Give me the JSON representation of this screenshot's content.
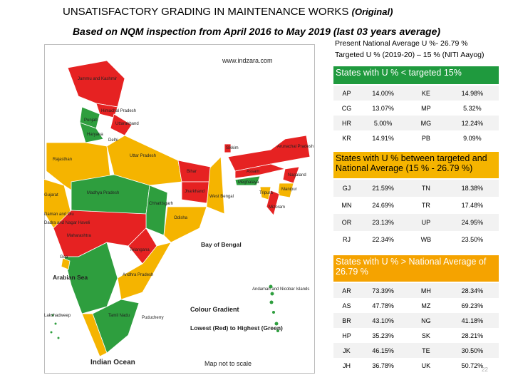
{
  "header": {
    "title": "UNSATISFACTORY GRADING IN MAINTENANCE WORKS",
    "title_note": "(Original)",
    "subtitle": "Based on NQM inspection from April 2016 to May 2019 (last 03 years average)",
    "national_average": "Present National Average U %- 26.79 %",
    "targeted": "Targeted U % (2019-20) – 15 % (NITI Aayog)"
  },
  "map": {
    "website": "www.indzara.com",
    "labels": [
      "Jammu and Kashmir",
      "Himachal Pradesh",
      "Punjab",
      "Uttarakhand",
      "Haryana",
      "Delhi",
      "Rajasthan",
      "Uttar Pradesh",
      "Bihar",
      "Sikkim",
      "Arunachal Pradesh",
      "Assam",
      "Meghalaya",
      "Nagaland",
      "Manipur",
      "Tripura",
      "Mizoram",
      "Gujarat",
      "Madhya Pradesh",
      "Jharkhand",
      "West Bengal",
      "Daman and Diu",
      "Dadra and Nagar Haveli",
      "Chhattisgarh",
      "Odisha",
      "Maharashtra",
      "Telangana",
      "Goa",
      "Andhra Pradesh",
      "Tamil Nadu",
      "Puducherry",
      "Lakshadweep",
      "Andaman and Nicobar Islands",
      "Arabian Sea",
      "Bay of Bengal"
    ],
    "legend_title": "Colour Gradient",
    "legend_text": "Lowest (Red) to Highest (Green)",
    "ocean": "Indian Ocean",
    "scale_note": "Map not to scale"
  },
  "sections": [
    {
      "heading": "States with U % < targeted 15%",
      "rows": [
        [
          "AP",
          "14.00%",
          "KE",
          "14.98%"
        ],
        [
          "CG",
          "13.07%",
          "MP",
          "5.32%"
        ],
        [
          "HR",
          "5.00%",
          "MG",
          "12.24%"
        ],
        [
          "KR",
          "14.91%",
          "PB",
          "9.09%"
        ]
      ]
    },
    {
      "heading": "States with U % between targeted and National Average (15 % - 26.79 %)",
      "rows": [
        [
          "GJ",
          "21.59%",
          "TN",
          "18.38%"
        ],
        [
          "MN",
          "24.69%",
          "TR",
          "17.48%"
        ],
        [
          "OR",
          "23.13%",
          "UP",
          "24.95%"
        ],
        [
          "RJ",
          "22.34%",
          "WB",
          "23.50%"
        ]
      ]
    },
    {
      "heading": "States with U % > National Average of 26.79 %",
      "rows": [
        [
          "AR",
          "73.39%",
          "MH",
          "28.34%"
        ],
        [
          "AS",
          "47.78%",
          "MZ",
          "69.23%"
        ],
        [
          "BR",
          "43.10%",
          "NG",
          "41.18%"
        ],
        [
          "HP",
          "35.23%",
          "SK",
          "28.21%"
        ],
        [
          "JK",
          "46.15%",
          "TE",
          "30.50%"
        ],
        [
          "JH",
          "36.78%",
          "UK",
          "50.72%"
        ]
      ]
    }
  ],
  "page_number": "22"
}
